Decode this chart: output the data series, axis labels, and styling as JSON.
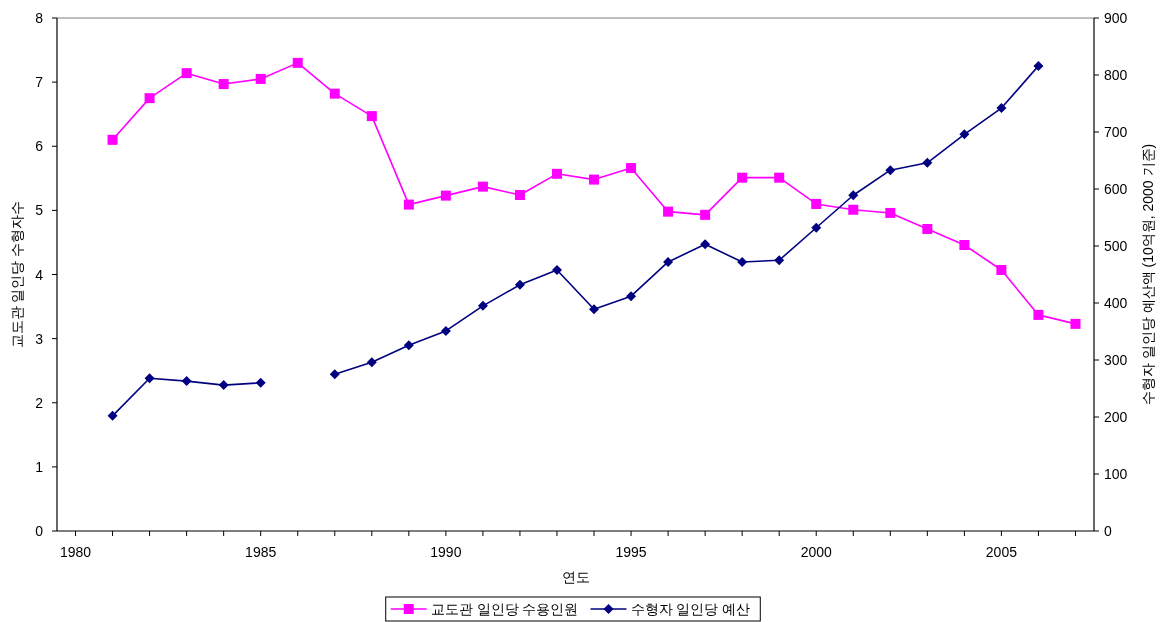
{
  "chart_data": {
    "type": "line",
    "xlabel": "연도",
    "ylabel": "교도관 일인당 수형자수",
    "y2label": "수형자 일인당 예산액 (10억원, 2000 기준)",
    "x": [
      1981,
      1982,
      1983,
      1984,
      1985,
      1986,
      1987,
      1988,
      1989,
      1990,
      1991,
      1992,
      1993,
      1994,
      1995,
      1996,
      1997,
      1998,
      1999,
      2000,
      2001,
      2002,
      2003,
      2004,
      2005,
      2006,
      2007
    ],
    "series": [
      {
        "name": "교도관 일인당 수용인원",
        "color": "#ff00ff",
        "marker": "square",
        "values": [
          6.1,
          6.75,
          7.14,
          6.97,
          7.05,
          7.3,
          6.82,
          6.47,
          5.09,
          5.23,
          5.37,
          5.24,
          5.57,
          5.48,
          5.66,
          4.98,
          4.93,
          5.51,
          5.51,
          5.1,
          5.01,
          4.96,
          4.71,
          4.46,
          4.07,
          3.37,
          3.23
        ]
      },
      {
        "name": "수형자 일인당 예산",
        "color": "#000080",
        "marker": "diamond",
        "axis": "y2",
        "values": [
          202,
          268,
          263,
          256,
          260,
          null,
          275,
          296,
          326,
          351,
          395,
          432,
          458,
          389,
          412,
          472,
          503,
          472,
          475,
          532,
          589,
          633,
          646,
          696,
          742,
          816,
          null
        ]
      }
    ],
    "xlim": [
      1979.5,
      2007.5
    ],
    "xticks": [
      1980,
      {
        "value": 1981,
        "label": null
      },
      {
        "value": 1982,
        "label": null
      },
      {
        "value": 1983,
        "label": null
      },
      {
        "value": 1984,
        "label": null
      },
      1985,
      {
        "value": 1986,
        "label": null
      },
      {
        "value": 1987,
        "label": null
      },
      {
        "value": 1988,
        "label": null
      },
      {
        "value": 1989,
        "label": null
      },
      1990,
      {
        "value": 1991,
        "label": null
      },
      {
        "value": 1992,
        "label": null
      },
      {
        "value": 1993,
        "label": null
      },
      {
        "value": 1994,
        "label": null
      },
      1995,
      {
        "value": 1996,
        "label": null
      },
      {
        "value": 1997,
        "label": null
      },
      {
        "value": 1998,
        "label": null
      },
      {
        "value": 1999,
        "label": null
      },
      2000,
      {
        "value": 2001,
        "label": null
      },
      {
        "value": 2002,
        "label": null
      },
      {
        "value": 2003,
        "label": null
      },
      {
        "value": 2004,
        "label": null
      },
      2005,
      {
        "value": 2006,
        "label": null
      },
      {
        "value": 2007,
        "label": null
      }
    ],
    "ylim": [
      0,
      8
    ],
    "yticks": [
      0,
      1,
      2,
      3,
      4,
      5,
      6,
      7,
      8
    ],
    "y2lim": [
      0,
      900
    ],
    "y2ticks": [
      0,
      100,
      200,
      300,
      400,
      500,
      600,
      700,
      800,
      900
    ],
    "legend": "bottom",
    "grid": false,
    "line_style": "solid"
  }
}
